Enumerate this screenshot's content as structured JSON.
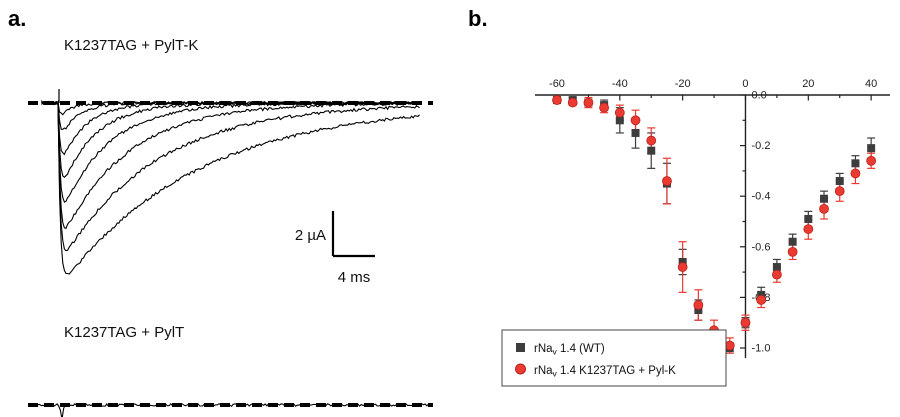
{
  "figure": {
    "panel_a_label": "a.",
    "panel_b_label": "b."
  },
  "panel_a": {
    "trace1_title": "K1237TAG + PylT-K",
    "trace2_title": "K1237TAG + PylT",
    "scale_bar": {
      "vertical_label": "2 µA",
      "horizontal_label": "4 ms"
    },
    "sweep_peaks_uA": [
      0.8,
      1.8,
      3.1,
      4.2,
      5.3,
      6.4,
      7.3,
      8.3
    ],
    "sweep_decay_ms": [
      1.1,
      1.6,
      2.3,
      3.2,
      4.4,
      6.2,
      8.9,
      12.9
    ]
  },
  "chart_data": {
    "type": "scatter",
    "title": "",
    "xlabel": "",
    "ylabel": "",
    "xlim": [
      -67,
      46
    ],
    "ylim": [
      -1.05,
      0.05
    ],
    "x_ticks": [
      -60,
      -40,
      -20,
      0,
      20,
      40
    ],
    "y_ticks": [
      0.0,
      -0.2,
      -0.4,
      -0.6,
      -0.8,
      -1.0
    ],
    "grid": false,
    "legend_position": "bottom-left",
    "x": [
      -60,
      -55,
      -50,
      -45,
      -40,
      -35,
      -30,
      -25,
      -20,
      -15,
      -10,
      -5,
      0,
      5,
      10,
      15,
      20,
      25,
      30,
      35,
      40
    ],
    "series": [
      {
        "name": "rNav 1.4 (WT)",
        "name_parts": {
          "pre": "rNa",
          "sub": "v",
          "post": " 1.4 (WT)"
        },
        "marker": "square",
        "color": "#3d3d3d",
        "values": [
          -0.02,
          -0.02,
          -0.03,
          -0.04,
          -0.1,
          -0.15,
          -0.22,
          -0.35,
          -0.66,
          -0.85,
          -0.95,
          -1.0,
          -0.9,
          -0.79,
          -0.68,
          -0.58,
          -0.49,
          -0.41,
          -0.34,
          -0.27,
          -0.21
        ],
        "errors": [
          0.01,
          0.01,
          0.01,
          0.02,
          0.05,
          0.06,
          0.07,
          0.08,
          0.05,
          0.04,
          0.03,
          0.02,
          0.02,
          0.03,
          0.03,
          0.03,
          0.03,
          0.03,
          0.03,
          0.03,
          0.04
        ]
      },
      {
        "name": "rNav 1.4 K1237TAG + Pyl-K",
        "name_parts": {
          "pre": "rNa",
          "sub": "v",
          "post": " 1.4 K1237TAG + Pyl-K"
        },
        "marker": "circle",
        "color": "#ea3a31",
        "values": [
          -0.02,
          -0.03,
          -0.03,
          -0.05,
          -0.07,
          -0.1,
          -0.18,
          -0.34,
          -0.68,
          -0.83,
          -0.93,
          -0.99,
          -0.9,
          -0.81,
          -0.71,
          -0.62,
          -0.53,
          -0.45,
          -0.38,
          -0.31,
          -0.26
        ],
        "errors": [
          0.01,
          0.01,
          0.02,
          0.02,
          0.03,
          0.04,
          0.05,
          0.09,
          0.1,
          0.06,
          0.04,
          0.03,
          0.03,
          0.03,
          0.03,
          0.03,
          0.04,
          0.04,
          0.04,
          0.04,
          0.03
        ]
      }
    ]
  }
}
